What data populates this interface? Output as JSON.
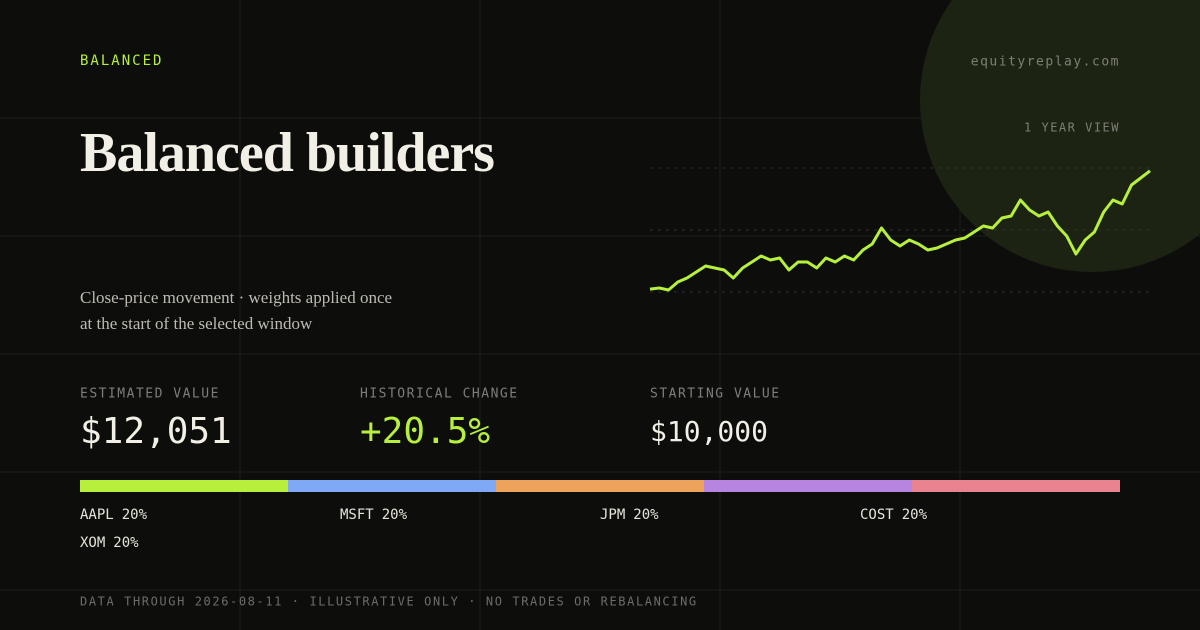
{
  "label": "BALANCED",
  "site": "equityreplay.com",
  "title": "Balanced builders",
  "subtitle_lines": [
    "Close-price movement · weights applied once",
    "at the start of the selected window"
  ],
  "chart_data": {
    "type": "line",
    "view_label": "1 YEAR VIEW",
    "color": "#b6f03c",
    "ylim": [
      9950,
      12100
    ],
    "values": [
      10000,
      10019,
      9985,
      10123,
      10193,
      10297,
      10401,
      10366,
      10331,
      10193,
      10366,
      10470,
      10574,
      10505,
      10540,
      10331,
      10470,
      10470,
      10366,
      10540,
      10470,
      10574,
      10505,
      10678,
      10782,
      11060,
      10852,
      10748,
      10852,
      10782,
      10678,
      10713,
      10782,
      10852,
      10886,
      10990,
      11095,
      11060,
      11233,
      11268,
      11545,
      11372,
      11268,
      11337,
      11095,
      10921,
      10609,
      10852,
      10990,
      11337,
      11545,
      11476,
      11806,
      11927,
      12051
    ]
  },
  "stats": [
    {
      "label": "ESTIMATED VALUE",
      "value": "$12,051"
    },
    {
      "label": "HISTORICAL CHANGE",
      "value": "+20.5%"
    },
    {
      "label": "STARTING VALUE",
      "value": "$10,000"
    }
  ],
  "weights": {
    "type": "stacked-bar",
    "series": [
      {
        "name": "AAPL",
        "values": [
          20
        ],
        "value_labels": [
          "20%"
        ],
        "color": "#b6f03c"
      },
      {
        "name": "MSFT",
        "values": [
          20
        ],
        "value_labels": [
          "20%"
        ],
        "color": "#7fa8f5"
      },
      {
        "name": "JPM",
        "values": [
          20
        ],
        "value_labels": [
          "20%"
        ],
        "color": "#eea35d"
      },
      {
        "name": "COST",
        "values": [
          20
        ],
        "value_labels": [
          "20%"
        ],
        "color": "#b784e0"
      },
      {
        "name": "XOM",
        "values": [
          20
        ],
        "value_labels": [
          "20%"
        ],
        "color": "#e8838f"
      }
    ]
  },
  "footer": "DATA THROUGH 2026-08-11 · ILLUSTRATIVE ONLY · NO TRADES OR REBALANCING"
}
